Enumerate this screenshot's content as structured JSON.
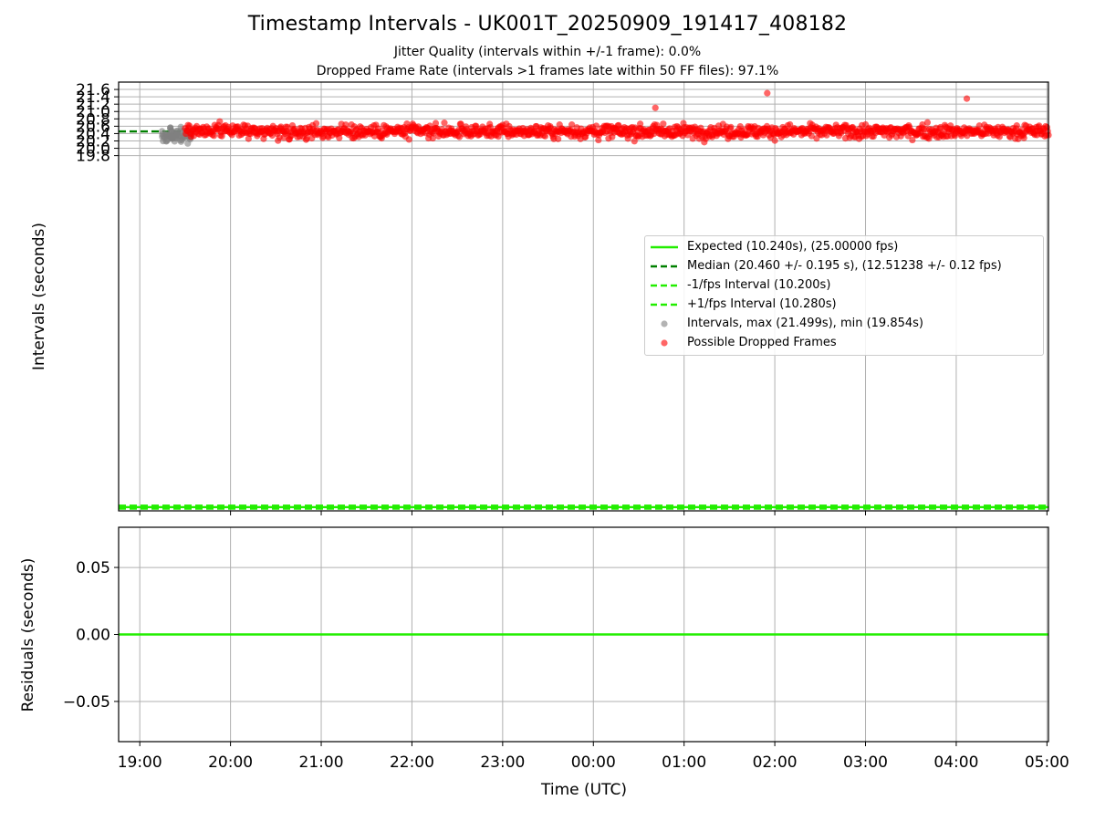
{
  "title": "Timestamp Intervals - UK001T_20250909_191417_408182",
  "subtitle_jitter": "Jitter Quality (intervals within +/-1 frame): 0.0%",
  "subtitle_dropped": "Dropped Frame Rate (intervals >1 frames late within 50 FF files): 97.1%",
  "colors": {
    "expected": "#22ee00",
    "median": "#008000",
    "interval_bounds": "#22ee00",
    "intervals": "#808080",
    "dropped": "#ff0000",
    "grid": "#b0b0b0"
  },
  "chart_data": [
    {
      "type": "scatter",
      "panel": "top",
      "ylabel": "Intervals (seconds)",
      "xlabel": "",
      "y_ticks": [
        "19.8",
        "20.0",
        "20.2",
        "20.4",
        "20.6",
        "20.8",
        "21.0",
        "21.2",
        "21.4",
        "21.6"
      ],
      "y_tick_values": [
        19.8,
        20.0,
        20.2,
        20.4,
        20.6,
        20.8,
        21.0,
        21.2,
        21.4,
        21.6
      ],
      "ylim": [
        10.14,
        21.8
      ],
      "x_ticks": [
        "19:00",
        "20:00",
        "21:00",
        "22:00",
        "23:00",
        "00:00",
        "01:00",
        "02:00",
        "03:00",
        "04:00",
        "05:00"
      ],
      "xlim": [
        "2025-09-09T18:46:00Z",
        "2025-09-10T05:01:00Z"
      ],
      "grid": true,
      "legend_position": "center-right",
      "reference_lines": [
        {
          "name": "Expected (10.240s), (25.00000 fps)",
          "y": 10.24,
          "style": "solid"
        },
        {
          "name": "Median (20.460 +/- 0.195 s), (12.51238 +/- 0.12 fps)",
          "y": 20.46,
          "style": "dashed",
          "x_end": "2025-09-09T19:30:00Z"
        },
        {
          "name": "-1/fps Interval (10.200s)",
          "y": 10.2,
          "style": "dashed"
        },
        {
          "name": "+1/fps Interval (10.280s)",
          "y": 10.28,
          "style": "dashed"
        }
      ],
      "series": [
        {
          "name": "Intervals, max (21.499s), min (19.854s)",
          "time_range": [
            "2025-09-09T19:14:00Z",
            "2025-09-09T19:34:00Z"
          ],
          "max": 21.499,
          "min": 19.854
        },
        {
          "name": "Possible Dropped Frames",
          "time_range": [
            "2025-09-09T19:30:00Z",
            "2025-09-10T05:01:00Z"
          ],
          "median": 20.46,
          "spread": 0.195,
          "max": 21.499,
          "min": 19.854
        }
      ]
    },
    {
      "type": "line",
      "panel": "bottom",
      "xlabel": "Time (UTC)",
      "ylabel": "Residuals (seconds)",
      "y_ticks": [
        "−0.05",
        "0.00",
        "0.05"
      ],
      "y_tick_values": [
        -0.05,
        0.0,
        0.05
      ],
      "ylim": [
        -0.08,
        0.08
      ],
      "x_ticks": [
        "19:00",
        "20:00",
        "21:00",
        "22:00",
        "23:00",
        "00:00",
        "01:00",
        "02:00",
        "03:00",
        "04:00",
        "05:00"
      ],
      "grid": true,
      "series": [
        {
          "y": 0.0
        }
      ]
    }
  ]
}
